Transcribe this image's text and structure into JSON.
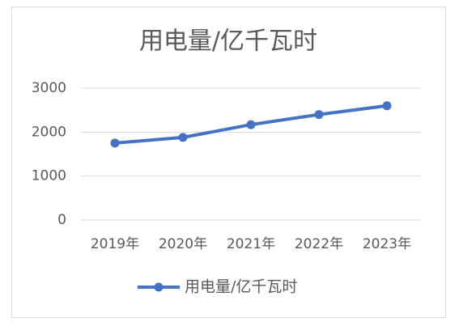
{
  "chart_data": {
    "type": "line",
    "title": "用电量/亿千瓦时",
    "categories": [
      "2019年",
      "2020年",
      "2021年",
      "2022年",
      "2023年"
    ],
    "series": [
      {
        "name": "用电量/亿千瓦时",
        "color": "#4472c4",
        "values": [
          1750,
          1880,
          2170,
          2400,
          2600
        ]
      }
    ],
    "ylim": [
      0,
      3000
    ],
    "yticks": [
      0,
      1000,
      2000,
      3000
    ],
    "grid": true,
    "legend": "bottom"
  }
}
